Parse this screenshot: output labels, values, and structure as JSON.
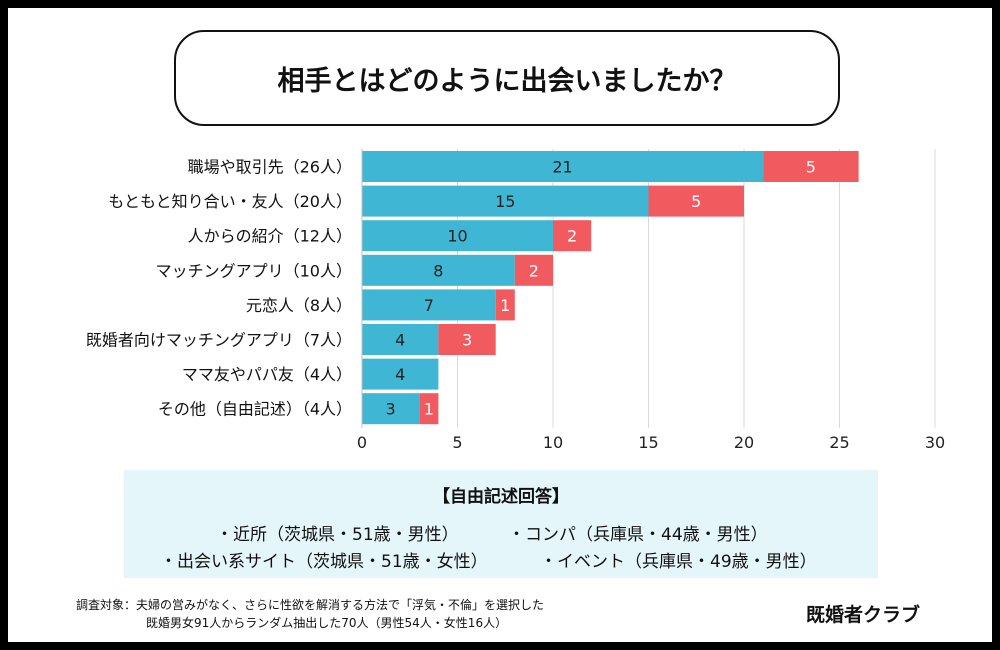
{
  "header": {
    "title": "相手とはどのように出会いましたか？"
  },
  "chart_data": {
    "type": "bar",
    "orientation": "horizontal",
    "stacked": true,
    "title": "相手とはどのように出会いましたか？",
    "categories": [
      "職場や取引先（26人）",
      "もともと知り合い・友人（20人）",
      "人からの紹介（12人）",
      "マッチングアプリ（10人）",
      "元恋人（8人）",
      "既婚者向けマッチングアプリ（7人）",
      "ママ友やパパ友（4人）",
      "その他（自由記述）（4人）"
    ],
    "series": [
      {
        "values": [
          21,
          15,
          10,
          8,
          7,
          4,
          4,
          3
        ],
        "color": "#3fb6d3"
      },
      {
        "values": [
          5,
          5,
          2,
          2,
          1,
          3,
          0,
          1
        ],
        "color": "#f15a5e"
      }
    ],
    "xlim": [
      0,
      30
    ],
    "xticks": [
      "0",
      "5",
      "10",
      "15",
      "20",
      "25",
      "30"
    ],
    "grid": "vertical",
    "legend": "none"
  },
  "free_answers": {
    "heading": "【自由記述回答】",
    "items": [
      "・近所（茨城県・51歳・男性）",
      "・コンパ（兵庫県・44歳・男性）",
      "・出会い系サイト（茨城県・51歳・女性）",
      "・イベント（兵庫県・49歳・男性）"
    ]
  },
  "survey": {
    "line1": "調査対象：夫婦の営みがなく、さらに性欲を解消する方法で「浮気・不倫」を選択した",
    "line2": "既婚男女91人からランダム抽出した70人（男性54人・女性16人）"
  },
  "brand": "既婚者クラブ"
}
